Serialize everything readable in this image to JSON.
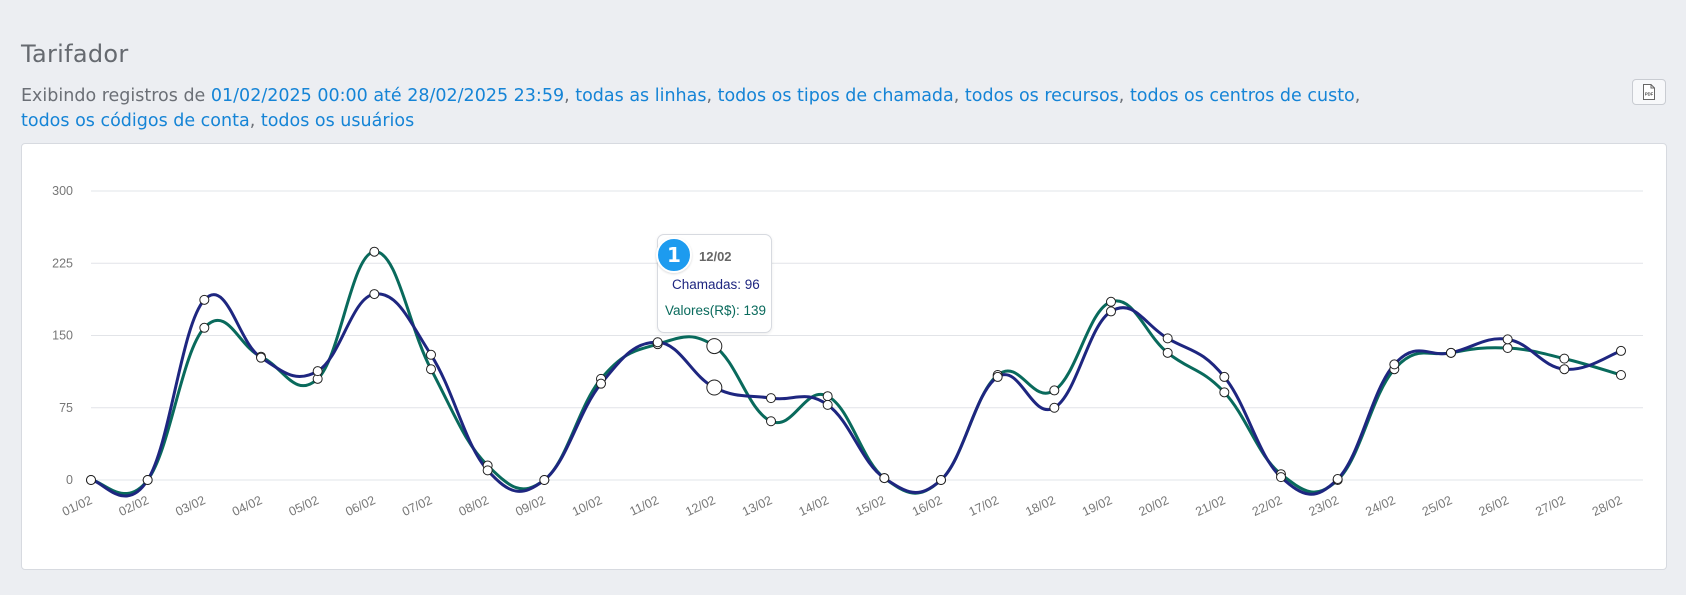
{
  "page": {
    "title": "Tarifador"
  },
  "filters": {
    "prefix": "Exibindo registros de ",
    "date_range": "01/02/2025 00:00 até 28/02/2025 23:59",
    "lines": "todas as linhas",
    "call_types": "todos os tipos de chamada",
    "resources": "todos os recursos",
    "cost_centers": "todos os centros de custo",
    "account_codes": "todos os códigos de conta",
    "users": "todos os usuários"
  },
  "toolbar": {
    "pdf_icon": "pdf-icon",
    "pdf_text": "PDF"
  },
  "tooltip": {
    "badge": "1",
    "title": "12/02",
    "row1": "Chamadas: 96",
    "row2": "Valores(R$): 139"
  },
  "colors": {
    "chamadas": "#1e2680",
    "valores": "#096a5c",
    "link": "#1584d6",
    "badge": "#1d9bef"
  },
  "chart_data": {
    "type": "line",
    "categories": [
      "01/02",
      "02/02",
      "03/02",
      "04/02",
      "05/02",
      "06/02",
      "07/02",
      "08/02",
      "09/02",
      "10/02",
      "11/02",
      "12/02",
      "13/02",
      "14/02",
      "15/02",
      "16/02",
      "17/02",
      "18/02",
      "19/02",
      "20/02",
      "21/02",
      "22/02",
      "23/02",
      "24/02",
      "25/02",
      "26/02",
      "27/02",
      "28/02"
    ],
    "y_ticks": [
      "0",
      "75",
      "150",
      "225",
      "300"
    ],
    "ylim": [
      0,
      300
    ],
    "grid": true,
    "series": [
      {
        "name": "Chamadas",
        "values": [
          0,
          0,
          187,
          127,
          113,
          193,
          130,
          10,
          0,
          100,
          143,
          96,
          85,
          78,
          2,
          0,
          107,
          75,
          175,
          147,
          107,
          3,
          1,
          120,
          132,
          146,
          115,
          134
        ]
      },
      {
        "name": "Valores(R$)",
        "values": [
          0,
          0,
          158,
          128,
          105,
          237,
          115,
          15,
          0,
          105,
          141,
          139,
          61,
          87,
          2,
          0,
          109,
          93,
          185,
          132,
          91,
          6,
          0,
          115,
          132,
          137,
          126,
          109
        ]
      }
    ]
  }
}
